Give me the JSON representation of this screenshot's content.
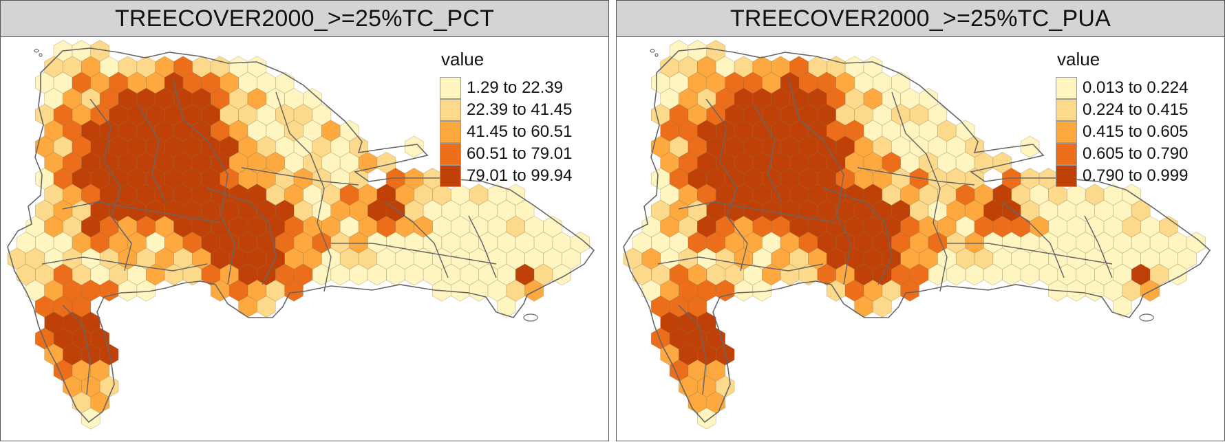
{
  "colors": {
    "c1": "#FFF5C1",
    "c2": "#FDD98B",
    "c3": "#FDA940",
    "c4": "#EC6D1A",
    "c5": "#BF4107",
    "boundary": "#666666",
    "strip_bg": "#D4D4D4"
  },
  "panels": [
    {
      "id": "left",
      "title": "TREECOVER2000_>=25%TC_PCT",
      "legend": {
        "title": "value",
        "classes": [
          "1.29 to 22.39",
          "22.39 to 41.45",
          "41.45 to 60.51",
          "60.51 to 79.01",
          "79.01 to 99.94"
        ]
      }
    },
    {
      "id": "right",
      "title": "TREECOVER2000_>=25%TC_PUA",
      "legend": {
        "title": "value",
        "classes": [
          "0.013 to 0.224",
          "0.224 to 0.415",
          "0.415 to 0.605",
          "0.605 to 0.790",
          "0.790 to 0.999"
        ]
      }
    }
  ]
}
